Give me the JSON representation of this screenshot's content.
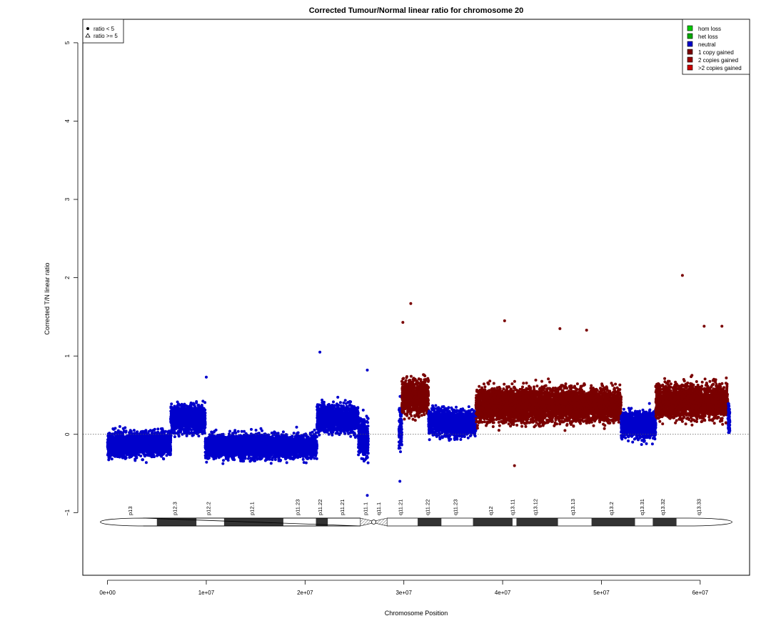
{
  "chart_data": {
    "type": "scatter",
    "title": "Corrected Tumour/Normal linear ratio for chromosome  20",
    "xlabel": "Chromosome Position",
    "ylabel": "Corrected T/N linear ratio",
    "xlim": [
      -2500000,
      65000000
    ],
    "ylim": [
      -1.8,
      5.3
    ],
    "x_ticks": [
      0,
      10000000,
      20000000,
      30000000,
      40000000,
      50000000,
      60000000
    ],
    "x_tick_labels": [
      "0e+00",
      "1e+07",
      "2e+07",
      "3e+07",
      "4e+07",
      "5e+07",
      "6e+07"
    ],
    "y_ticks": [
      -1,
      0,
      1,
      2,
      3,
      4,
      5
    ],
    "y_tick_labels": [
      "−1",
      "0",
      "1",
      "2",
      "3",
      "4",
      "5"
    ],
    "reference_line": {
      "y": 0,
      "style": "dotted"
    },
    "colors": {
      "hom_loss": "#00cc00",
      "het_loss": "#00aa00",
      "neutral": "#0000cc",
      "one_copy_gained": "#7a0000",
      "two_copies_gained": "#990000",
      "more_copies_gained": "#cc0000"
    },
    "segments": [
      {
        "start": 0,
        "end": 6400000,
        "mean": -0.12,
        "spread": 0.16,
        "status": "neutral"
      },
      {
        "start": 6400000,
        "end": 9900000,
        "mean": 0.2,
        "spread": 0.18,
        "status": "neutral"
      },
      {
        "start": 9900000,
        "end": 21200000,
        "mean": -0.15,
        "spread": 0.15,
        "status": "neutral"
      },
      {
        "start": 21200000,
        "end": 25400000,
        "mean": 0.2,
        "spread": 0.18,
        "status": "neutral"
      },
      {
        "start": 25400000,
        "end": 26400000,
        "mean": -0.05,
        "spread": 0.25,
        "status": "neutral"
      },
      {
        "start": 29500000,
        "end": 29800000,
        "mean": 0.1,
        "spread": 0.3,
        "status": "neutral"
      },
      {
        "start": 29800000,
        "end": 32500000,
        "mean": 0.48,
        "spread": 0.22,
        "status": "one_copy_gained"
      },
      {
        "start": 32500000,
        "end": 37300000,
        "mean": 0.15,
        "spread": 0.17,
        "status": "neutral"
      },
      {
        "start": 37300000,
        "end": 52000000,
        "mean": 0.38,
        "spread": 0.22,
        "status": "one_copy_gained"
      },
      {
        "start": 52000000,
        "end": 55500000,
        "mean": 0.12,
        "spread": 0.17,
        "status": "neutral"
      },
      {
        "start": 55500000,
        "end": 62800000,
        "mean": 0.42,
        "spread": 0.22,
        "status": "one_copy_gained"
      },
      {
        "start": 62800000,
        "end": 63000000,
        "mean": 0.2,
        "spread": 0.2,
        "status": "neutral"
      }
    ],
    "outliers": [
      {
        "x": 10000000,
        "y": 0.73,
        "status": "neutral"
      },
      {
        "x": 21500000,
        "y": 1.05,
        "status": "neutral"
      },
      {
        "x": 26300000,
        "y": 0.82,
        "status": "neutral"
      },
      {
        "x": 26300000,
        "y": -0.78,
        "status": "neutral"
      },
      {
        "x": 29600000,
        "y": -0.6,
        "status": "neutral"
      },
      {
        "x": 29900000,
        "y": 1.43,
        "status": "one_copy_gained"
      },
      {
        "x": 30700000,
        "y": 1.67,
        "status": "one_copy_gained"
      },
      {
        "x": 40200000,
        "y": 1.45,
        "status": "one_copy_gained"
      },
      {
        "x": 58200000,
        "y": 2.03,
        "status": "one_copy_gained"
      },
      {
        "x": 41200000,
        "y": -0.4,
        "status": "one_copy_gained"
      },
      {
        "x": 45800000,
        "y": 1.35,
        "status": "one_copy_gained"
      },
      {
        "x": 48500000,
        "y": 1.33,
        "status": "one_copy_gained"
      },
      {
        "x": 62200000,
        "y": 1.38,
        "status": "one_copy_gained"
      },
      {
        "x": 60400000,
        "y": 1.38,
        "status": "one_copy_gained"
      }
    ],
    "legend_shape": {
      "position": "top-left",
      "entries": [
        {
          "label": "ratio < 5",
          "symbol": "dot"
        },
        {
          "label": "ratio >= 5",
          "symbol": "triangle"
        }
      ]
    },
    "legend_status": {
      "position": "top-right",
      "entries": [
        {
          "label": "hom loss",
          "status": "hom_loss"
        },
        {
          "label": "het loss",
          "status": "het_loss"
        },
        {
          "label": "neutral",
          "status": "neutral"
        },
        {
          "label": "1 copy gained",
          "status": "one_copy_gained"
        },
        {
          "label": "2 copies gained",
          "status": "two_copies_gained"
        },
        {
          "label": ">2 copies gained",
          "status": "more_copies_gained"
        }
      ]
    },
    "ideogram": {
      "y": -1.12,
      "length": 62500000,
      "centromere": [
        25600000,
        28300000
      ],
      "bands": [
        {
          "name": "p13",
          "start": 0,
          "end": 5000000,
          "stain": "white"
        },
        {
          "name": "p12.3",
          "start": 5000000,
          "end": 9000000,
          "stain": "dark"
        },
        {
          "name": "p12.2",
          "start": 9000000,
          "end": 11800000,
          "stain": "white"
        },
        {
          "name": "p12.1",
          "start": 11800000,
          "end": 17800000,
          "stain": "dark"
        },
        {
          "name": "p11.23",
          "start": 17800000,
          "end": 21100000,
          "stain": "white"
        },
        {
          "name": "p11.22",
          "start": 21100000,
          "end": 22300000,
          "stain": "dark"
        },
        {
          "name": "p11.21",
          "start": 22300000,
          "end": 25600000,
          "stain": "white"
        },
        {
          "name": "p11.1",
          "start": 25600000,
          "end": 27000000,
          "stain": "centromere"
        },
        {
          "name": "q11.1",
          "start": 27000000,
          "end": 28300000,
          "stain": "centromere"
        },
        {
          "name": "q11.21",
          "start": 28300000,
          "end": 31400000,
          "stain": "white"
        },
        {
          "name": "q11.22",
          "start": 31400000,
          "end": 33800000,
          "stain": "dark"
        },
        {
          "name": "q11.23",
          "start": 33800000,
          "end": 37000000,
          "stain": "white"
        },
        {
          "name": "q12",
          "start": 37000000,
          "end": 41000000,
          "stain": "dark"
        },
        {
          "name": "q13.11",
          "start": 41000000,
          "end": 41400000,
          "stain": "white"
        },
        {
          "name": "q13.12",
          "start": 41400000,
          "end": 45600000,
          "stain": "dark"
        },
        {
          "name": "q13.13",
          "start": 45600000,
          "end": 49000000,
          "stain": "white"
        },
        {
          "name": "q13.2",
          "start": 49000000,
          "end": 53400000,
          "stain": "dark"
        },
        {
          "name": "q13.31",
          "start": 53400000,
          "end": 55200000,
          "stain": "white"
        },
        {
          "name": "q13.32",
          "start": 55200000,
          "end": 57600000,
          "stain": "dark"
        },
        {
          "name": "q13.33",
          "start": 57600000,
          "end": 62500000,
          "stain": "white"
        }
      ]
    }
  }
}
